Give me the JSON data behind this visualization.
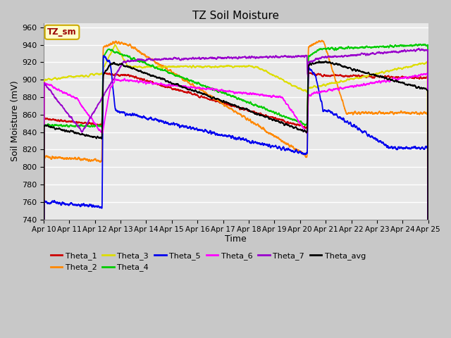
{
  "title": "TZ Soil Moisture",
  "xlabel": "Time",
  "ylabel": "Soil Moisture (mV)",
  "ylim": [
    740,
    965
  ],
  "yticks": [
    740,
    760,
    780,
    800,
    820,
    840,
    860,
    880,
    900,
    920,
    940,
    960
  ],
  "xtick_labels": [
    "Apr 10",
    "Apr 11",
    "Apr 12",
    "Apr 13",
    "Apr 14",
    "Apr 15",
    "Apr 16",
    "Apr 17",
    "Apr 18",
    "Apr 19",
    "Apr 20",
    "Apr 21",
    "Apr 22",
    "Apr 23",
    "Apr 24",
    "Apr 25"
  ],
  "legend_label": "TZ_sm",
  "colors": {
    "Theta_1": "#cc0000",
    "Theta_2": "#ff8800",
    "Theta_3": "#dddd00",
    "Theta_4": "#00cc00",
    "Theta_5": "#0000ee",
    "Theta_6": "#ff00ff",
    "Theta_7": "#9900cc",
    "Theta_avg": "#000000"
  },
  "fig_bg": "#c8c8c8",
  "plot_bg": "#e8e8e8",
  "grid_color": "#ffffff",
  "irr1": 2.3,
  "irr2": 10.3
}
